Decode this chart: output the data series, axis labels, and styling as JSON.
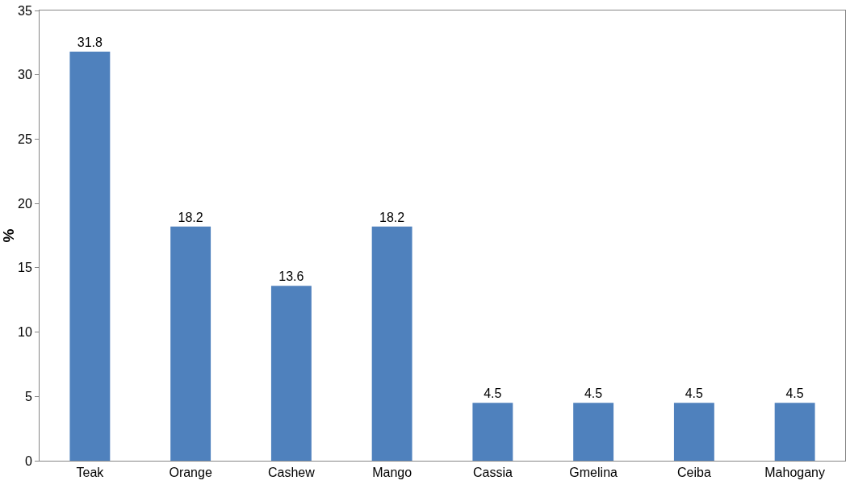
{
  "chart_data": {
    "type": "bar",
    "ylabel": "%",
    "categories": [
      "Teak",
      "Orange",
      "Cashew",
      "Mango",
      "Cassia",
      "Gmelina",
      "Ceiba",
      "Mahogany"
    ],
    "values": [
      31.8,
      18.2,
      13.6,
      18.2,
      4.5,
      4.5,
      4.5,
      4.5
    ],
    "color": "#4f81bd",
    "ylim": [
      0,
      35
    ],
    "yticks": [
      0,
      5,
      10,
      15,
      20,
      25,
      30,
      35
    ],
    "data_labels": true
  }
}
